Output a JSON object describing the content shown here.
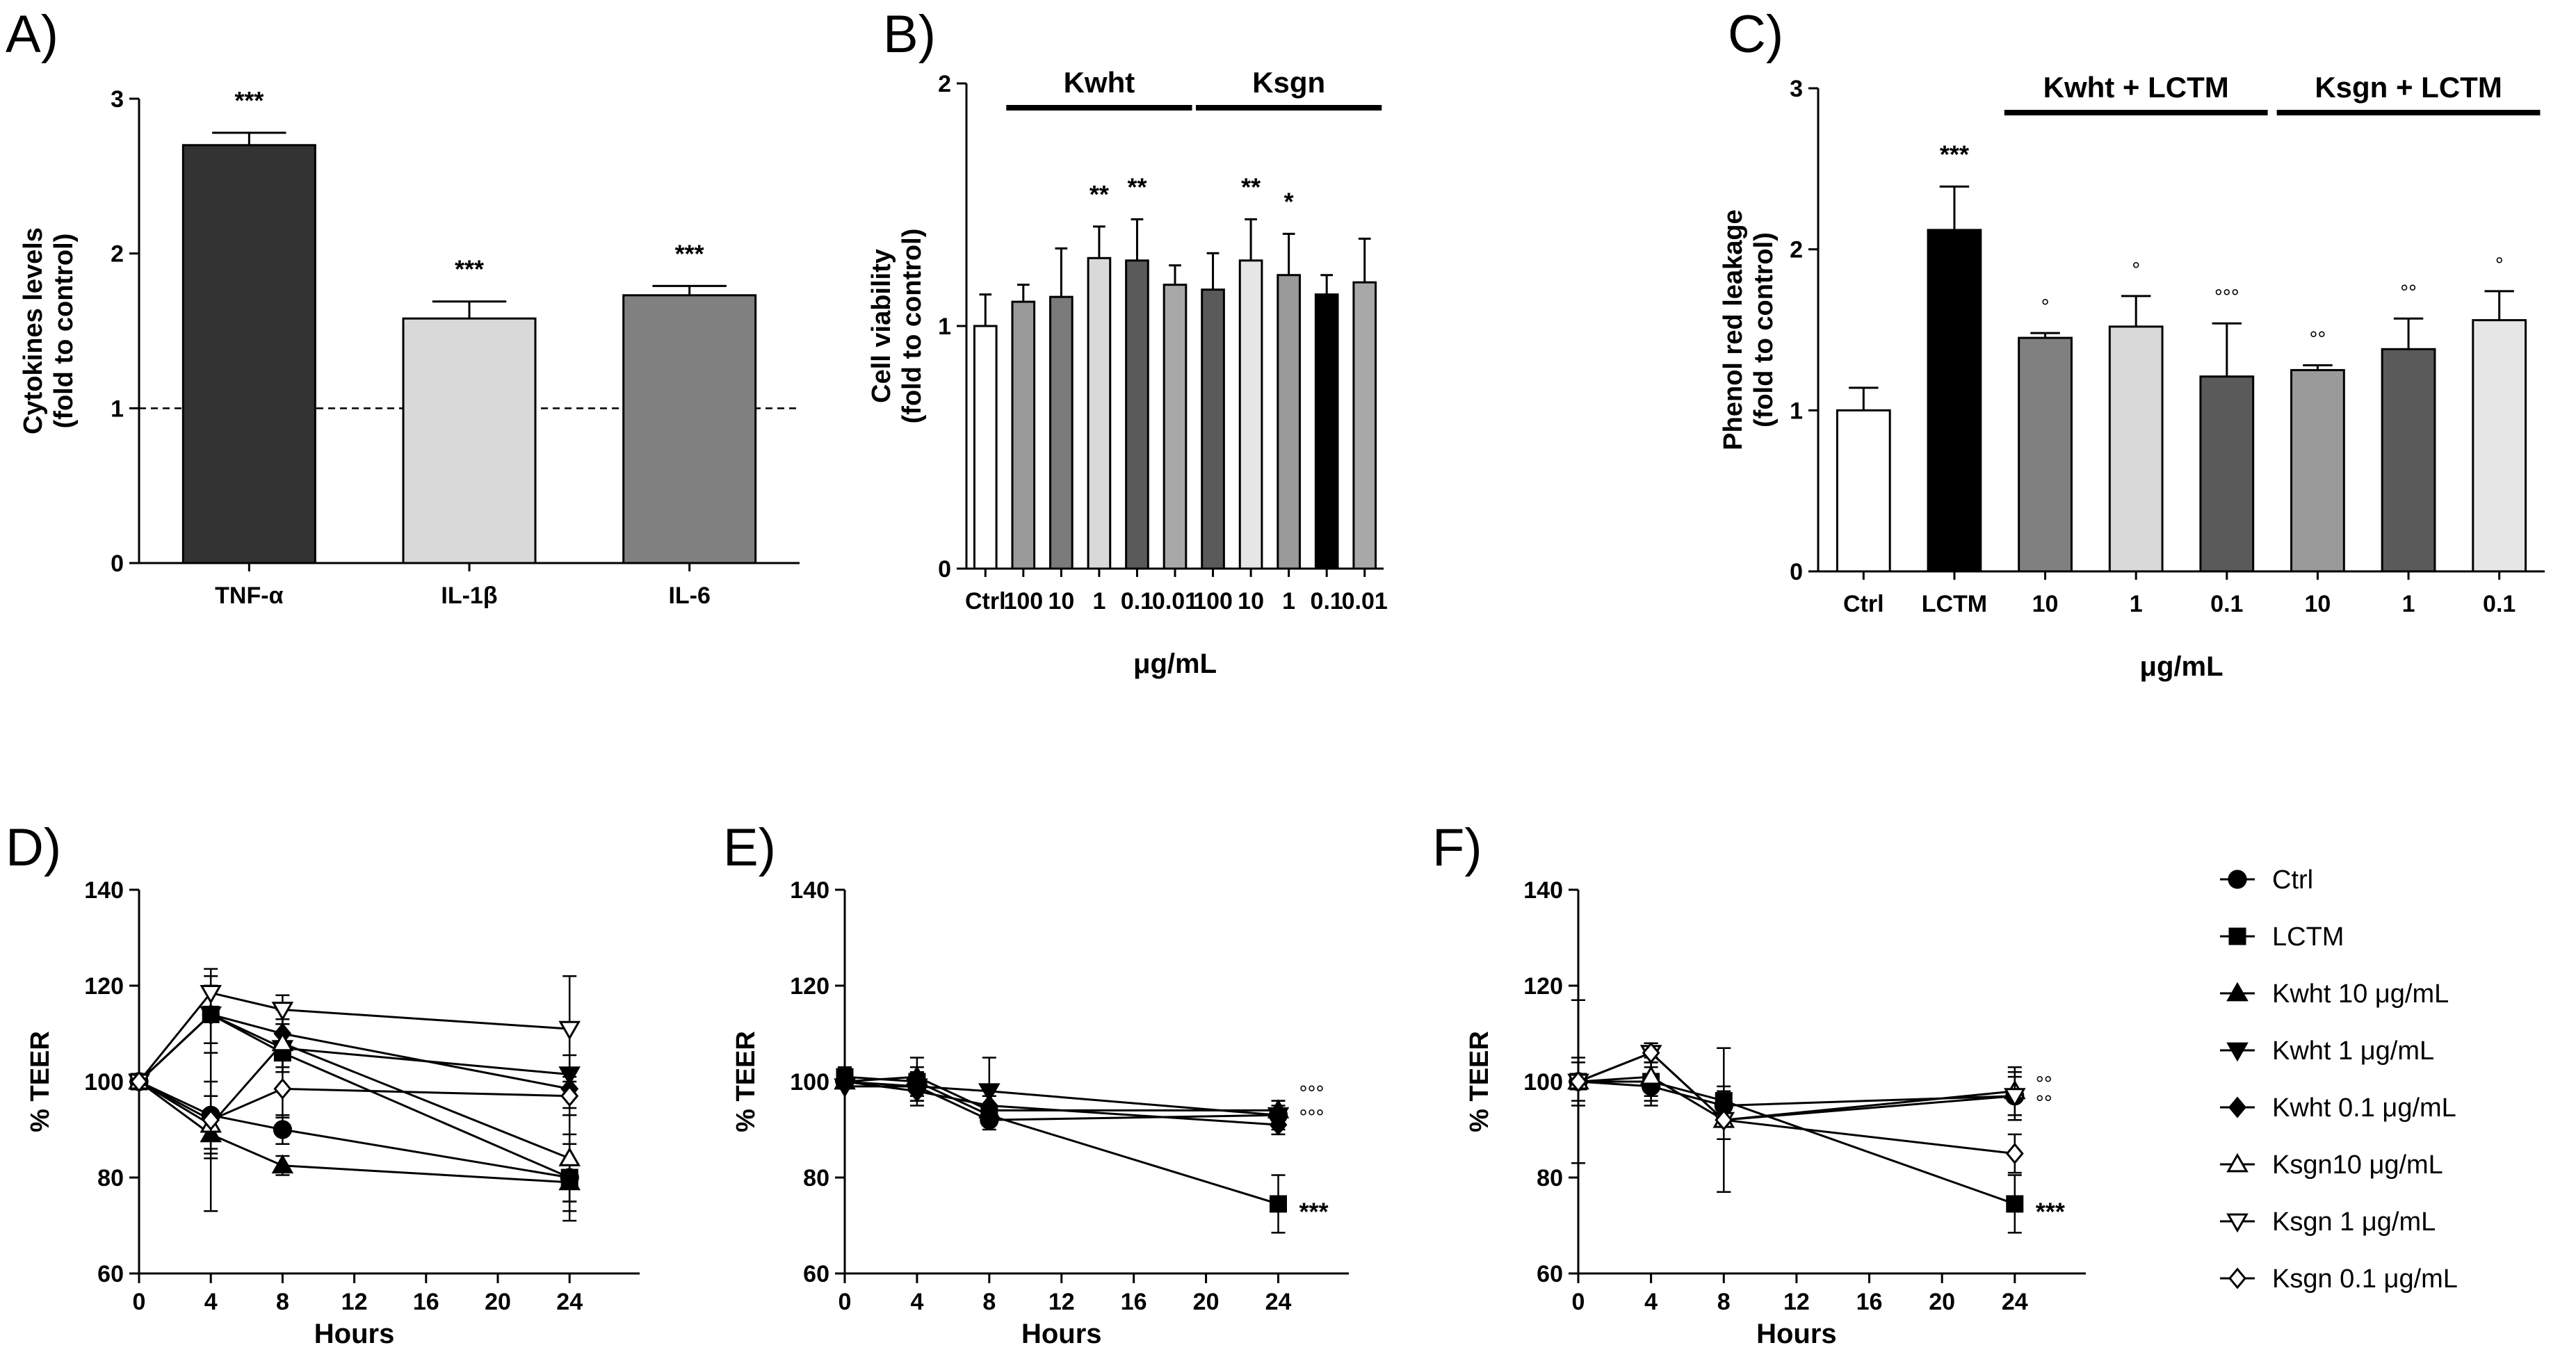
{
  "panels": {
    "A": "A)",
    "B": "B)",
    "C": "C)",
    "D": "D)",
    "E": "E)",
    "F": "F)"
  },
  "chart_data": [
    {
      "id": "A",
      "type": "bar",
      "ylabel_line1": "Cytokines levels",
      "ylabel_line2": "(fold to control)",
      "ylim": [
        0,
        3
      ],
      "yticks": [
        "0",
        "1",
        "2",
        "3"
      ],
      "reference_line": 1,
      "categories": [
        "TNF-α",
        "IL-1β",
        "IL-6"
      ],
      "values": [
        2.7,
        1.58,
        1.73
      ],
      "errors": [
        0.08,
        0.11,
        0.06
      ],
      "colors": [
        "#333333",
        "#d9d9d9",
        "#808080"
      ],
      "annotations": [
        "***",
        "***",
        "***"
      ]
    },
    {
      "id": "B",
      "type": "bar",
      "ylabel_line1": "Cell viability",
      "ylabel_line2": "(fold to control)",
      "xlabel": "μg/mL",
      "ylim": [
        0,
        2
      ],
      "yticks": [
        "0",
        "1",
        "2"
      ],
      "categories": [
        "Ctrl",
        "100",
        "10",
        "1",
        "0.1",
        "0.01",
        "100",
        "10",
        "1",
        "0.1",
        "0.01"
      ],
      "values": [
        1.0,
        1.1,
        1.12,
        1.28,
        1.27,
        1.17,
        1.15,
        1.27,
        1.21,
        1.13,
        1.18
      ],
      "errors": [
        0.13,
        0.07,
        0.2,
        0.13,
        0.17,
        0.08,
        0.15,
        0.17,
        0.17,
        0.08,
        0.18
      ],
      "colors": [
        "#ffffff",
        "#9a9a9a",
        "#7a7a7a",
        "#d9d9d9",
        "#5a5a5a",
        "#a8a8a8",
        "#5a5a5a",
        "#e6e6e6",
        "#9a9a9a",
        "#000000",
        "#a8a8a8"
      ],
      "annotations": [
        "",
        "",
        "",
        "**",
        "**",
        "",
        "",
        "**",
        "*",
        "",
        ""
      ],
      "groups": [
        {
          "label": "Kwht",
          "from": 1,
          "to": 5
        },
        {
          "label": "Ksgn",
          "from": 6,
          "to": 10
        }
      ]
    },
    {
      "id": "C",
      "type": "bar",
      "ylabel_line1": "Phenol red leakage",
      "ylabel_line2": "(fold to control)",
      "xlabel": "μg/mL",
      "ylim": [
        0,
        3
      ],
      "yticks": [
        "0",
        "1",
        "2",
        "3"
      ],
      "categories": [
        "Ctrl",
        "LCTM",
        "10",
        "1",
        "0.1",
        "10",
        "1",
        "0.1"
      ],
      "values": [
        1.0,
        2.12,
        1.45,
        1.52,
        1.21,
        1.25,
        1.38,
        1.56
      ],
      "errors": [
        0.14,
        0.27,
        0.03,
        0.19,
        0.33,
        0.03,
        0.19,
        0.18
      ],
      "colors": [
        "#ffffff",
        "#000000",
        "#808080",
        "#d9d9d9",
        "#5a5a5a",
        "#9a9a9a",
        "#5a5a5a",
        "#e6e6e6"
      ],
      "annotations": [
        "",
        "***",
        "°",
        "°",
        "°°°",
        "°°",
        "°°",
        "°"
      ],
      "groups": [
        {
          "label": "Kwht + LCTM",
          "from": 2,
          "to": 4
        },
        {
          "label": "Ksgn + LCTM",
          "from": 5,
          "to": 7
        }
      ]
    },
    {
      "id": "D",
      "type": "line",
      "ylabel": "% TEER",
      "xlabel": "Hours",
      "xlim": [
        0,
        24
      ],
      "ylim": [
        60,
        140
      ],
      "xticks": [
        "0",
        "4",
        "8",
        "12",
        "16",
        "20",
        "24"
      ],
      "yticks": [
        "60",
        "80",
        "100",
        "120",
        "140"
      ],
      "x": [
        0,
        4,
        8,
        24
      ],
      "series": [
        {
          "name": "Ctrl",
          "marker": "circle",
          "values": [
            100,
            93,
            90,
            80
          ],
          "errors": [
            0,
            20,
            3,
            9
          ]
        },
        {
          "name": "LCTM",
          "marker": "square",
          "values": [
            100,
            114,
            106,
            80
          ],
          "errors": [
            0,
            8,
            4,
            7
          ]
        },
        {
          "name": "Kwht 10",
          "marker": "triangle-up",
          "values": [
            100,
            89,
            82.5,
            79
          ],
          "errors": [
            0,
            3,
            2,
            4
          ]
        },
        {
          "name": "Kwht 1",
          "marker": "triangle-down",
          "values": [
            100,
            114,
            107,
            101.5
          ],
          "errors": [
            0,
            6,
            5,
            4
          ]
        },
        {
          "name": "Kwht 0.1",
          "marker": "diamond",
          "values": [
            100,
            114,
            110,
            98.5
          ],
          "errors": [
            0,
            6,
            5,
            4
          ]
        },
        {
          "name": "Ksgn10",
          "marker": "triangle-up-open",
          "values": [
            100,
            91,
            108,
            84
          ],
          "errors": [
            0,
            6,
            5,
            9
          ]
        },
        {
          "name": "Ksgn 1",
          "marker": "triangle-down-open",
          "values": [
            100,
            118.5,
            115,
            111
          ],
          "errors": [
            0,
            5,
            3,
            11
          ]
        },
        {
          "name": "Ksgn 0.1",
          "marker": "diamond-open",
          "values": [
            100,
            92,
            98.5,
            97
          ],
          "errors": [
            0,
            8,
            6,
            4
          ]
        }
      ]
    },
    {
      "id": "E",
      "type": "line",
      "ylabel": "% TEER",
      "xlabel": "Hours",
      "xlim": [
        0,
        24
      ],
      "ylim": [
        60,
        140
      ],
      "xticks": [
        "0",
        "4",
        "8",
        "12",
        "16",
        "20",
        "24"
      ],
      "yticks": [
        "60",
        "80",
        "100",
        "120",
        "140"
      ],
      "x": [
        0,
        4,
        8,
        24
      ],
      "series": [
        {
          "name": "Ctrl",
          "marker": "circle",
          "values": [
            100,
            99,
            92,
            93
          ],
          "errors": [
            0,
            3,
            2,
            3
          ]
        },
        {
          "name": "LCTM",
          "marker": "square",
          "values": [
            101,
            100,
            93,
            74.5
          ],
          "errors": [
            2,
            3,
            2,
            6
          ]
        },
        {
          "name": "Kwht 10",
          "marker": "triangle-up",
          "values": [
            100,
            101,
            94,
            94
          ],
          "errors": [
            0,
            4,
            3,
            2
          ]
        },
        {
          "name": "Kwht 1",
          "marker": "triangle-down",
          "values": [
            99,
            99,
            98,
            93
          ],
          "errors": [
            0,
            3,
            7,
            2
          ]
        },
        {
          "name": "Kwht 0.1",
          "marker": "diamond",
          "values": [
            100,
            98,
            95,
            91
          ],
          "errors": [
            0,
            3,
            2,
            2
          ]
        }
      ],
      "annotations": [
        {
          "text": "°°°",
          "x": 24,
          "y": 97
        },
        {
          "text": "°°°",
          "x": 24,
          "y": 92
        },
        {
          "text": "***",
          "x": 24,
          "y": 74
        }
      ]
    },
    {
      "id": "F",
      "type": "line",
      "ylabel": "% TEER",
      "xlabel": "Hours",
      "xlim": [
        0,
        24
      ],
      "ylim": [
        60,
        140
      ],
      "xticks": [
        "0",
        "4",
        "8",
        "12",
        "16",
        "20",
        "24"
      ],
      "yticks": [
        "60",
        "80",
        "100",
        "120",
        "140"
      ],
      "x": [
        0,
        4,
        8,
        24
      ],
      "series": [
        {
          "name": "Ctrl",
          "marker": "circle",
          "values": [
            100,
            99,
            95,
            97
          ],
          "errors": [
            0,
            4,
            3,
            5
          ]
        },
        {
          "name": "LCTM",
          "marker": "square",
          "values": [
            100,
            100,
            96,
            74.5
          ],
          "errors": [
            4,
            4,
            3,
            6
          ]
        },
        {
          "name": "Ksgn10",
          "marker": "triangle-up-open",
          "values": [
            100,
            101,
            92,
            98
          ],
          "errors": [
            17,
            4,
            15,
            5
          ]
        },
        {
          "name": "Ksgn 1",
          "marker": "triangle-down-open",
          "values": [
            100,
            106,
            92,
            97
          ],
          "errors": [
            5,
            2,
            4,
            4
          ]
        },
        {
          "name": "Ksgn 0.1",
          "marker": "diamond-open",
          "values": [
            100,
            106,
            92,
            85
          ],
          "errors": [
            0,
            2,
            15,
            4
          ]
        }
      ],
      "annotations": [
        {
          "text": "°°",
          "x": 24,
          "y": 99
        },
        {
          "text": "°°",
          "x": 24,
          "y": 95
        },
        {
          "text": "***",
          "x": 24,
          "y": 74
        }
      ]
    }
  ],
  "legend": {
    "entries": [
      {
        "marker": "circle",
        "label": "Ctrl"
      },
      {
        "marker": "square",
        "label": "LCTM"
      },
      {
        "marker": "triangle-up",
        "label": "Kwht 10 μg/mL"
      },
      {
        "marker": "triangle-down",
        "label": "Kwht 1 μg/mL"
      },
      {
        "marker": "diamond",
        "label": "Kwht 0.1 μg/mL"
      },
      {
        "marker": "triangle-up-open",
        "label": "Ksgn10 μg/mL"
      },
      {
        "marker": "triangle-down-open",
        "label": "Ksgn 1 μg/mL"
      },
      {
        "marker": "diamond-open",
        "label": "Ksgn 0.1 μg/mL"
      }
    ]
  }
}
